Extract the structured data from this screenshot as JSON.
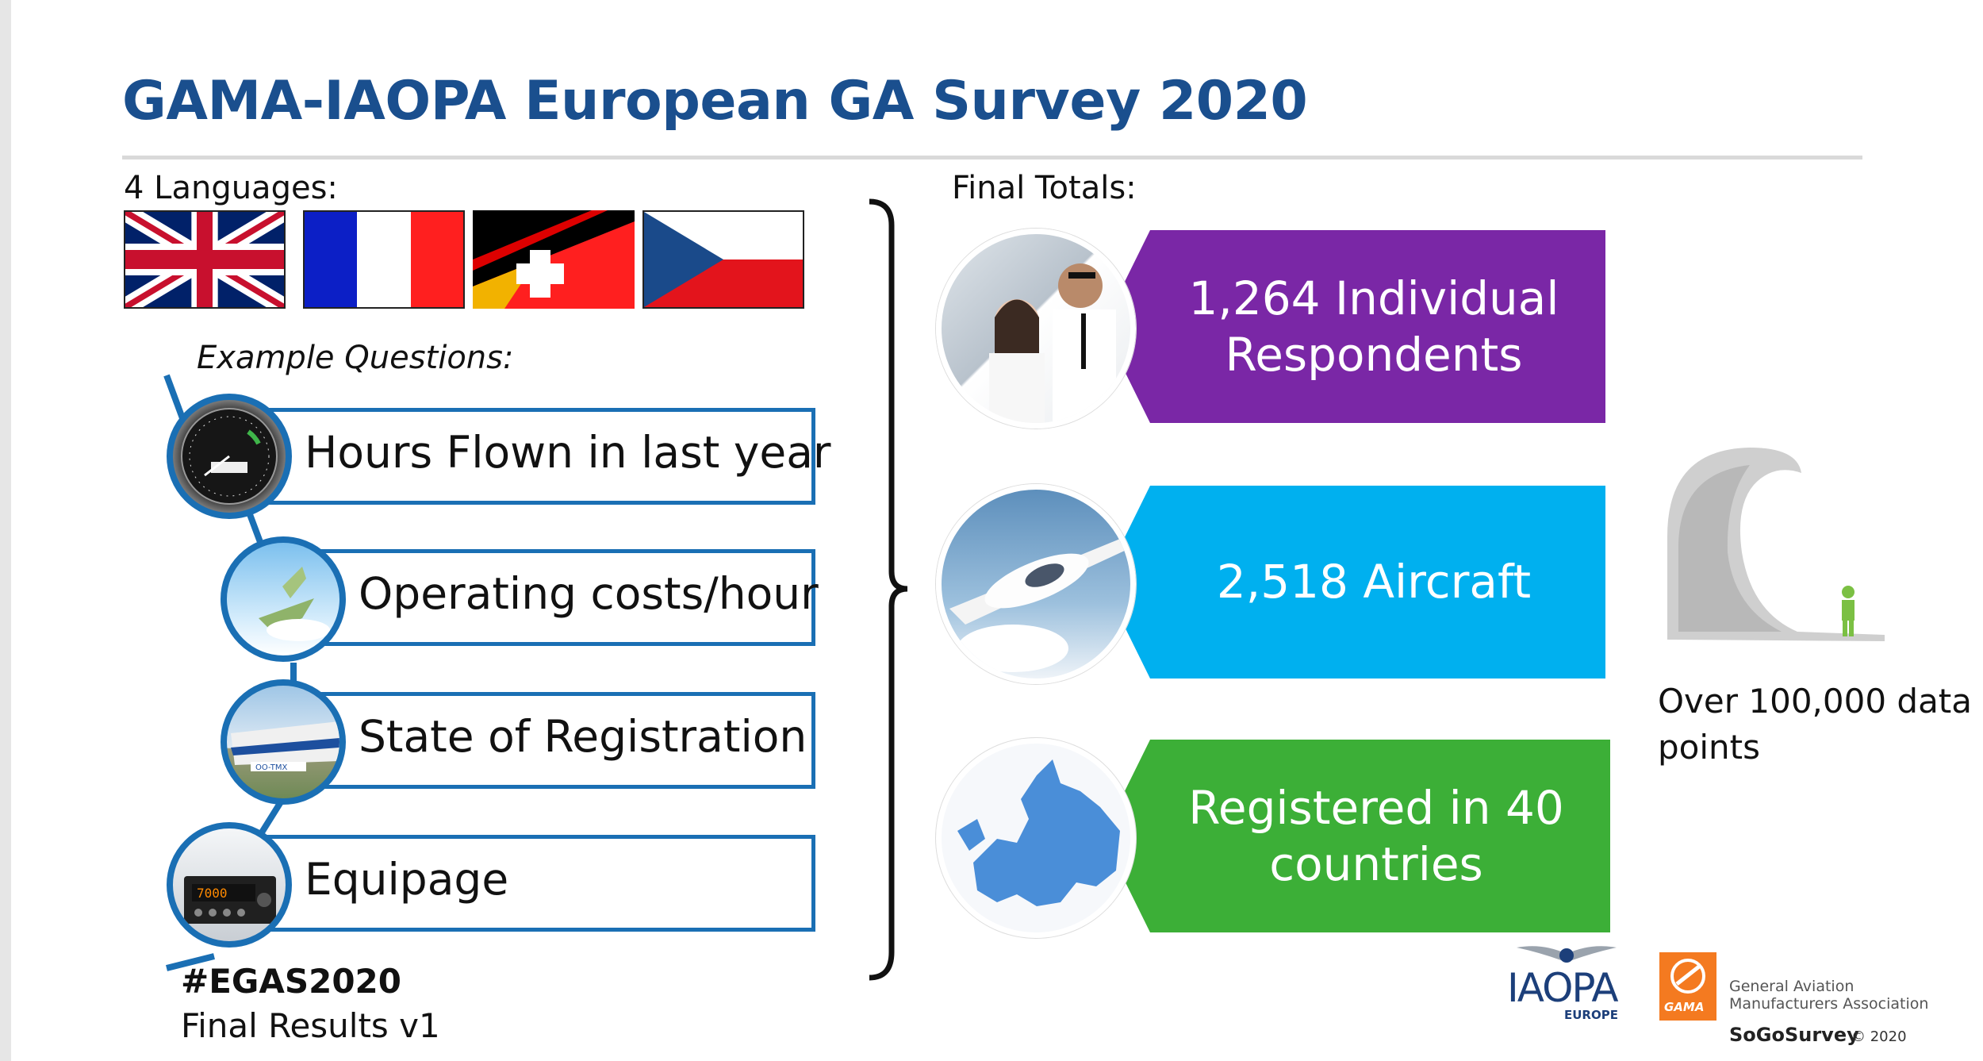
{
  "slide": {
    "title": "GAMA-IAOPA European GA Survey 2020",
    "languages_label": "4 Languages:",
    "examples_label": "Example Questions:",
    "final_totals_label": "Final Totals:",
    "flags": [
      "uk-flag",
      "france-flag",
      "germany-switzerland-flag",
      "czech-flag"
    ],
    "questions": [
      {
        "label": "Hours Flown in last year",
        "icon": "hour-meter-icon"
      },
      {
        "label": "Operating costs/hour",
        "icon": "money-plane-icon"
      },
      {
        "label": "State of Registration",
        "icon": "registered-aircraft-icon"
      },
      {
        "label": "Equipage",
        "icon": "avionics-icon"
      }
    ],
    "totals": [
      {
        "line1": "1,264 Individual",
        "line2": "Respondents",
        "color": "#7a27a6",
        "image": "pilots-photo"
      },
      {
        "line1": "2,518 Aircraft",
        "line2": "",
        "color": "#00b0ef",
        "image": "aircraft-photo"
      },
      {
        "line1": "Registered in 40",
        "line2": "countries",
        "color": "#3caf37",
        "image": "europe-map"
      }
    ],
    "data_points_text": "Over 100,000 data points",
    "hashtag": "#EGAS2020",
    "version": "Final Results v1"
  },
  "logos": {
    "iaopa_text": "IAOPA",
    "iaopa_sub": "EUROPE",
    "gama_text": "GAMA",
    "gama_line1": "General Aviation",
    "gama_line2": "Manufacturers Association",
    "sogo": "SoGoSurvey",
    "copyright": "© 2020"
  },
  "colors": {
    "title": "#1a4f8e",
    "question_border": "#1a6fb4",
    "gama_orange": "#f47a20"
  }
}
